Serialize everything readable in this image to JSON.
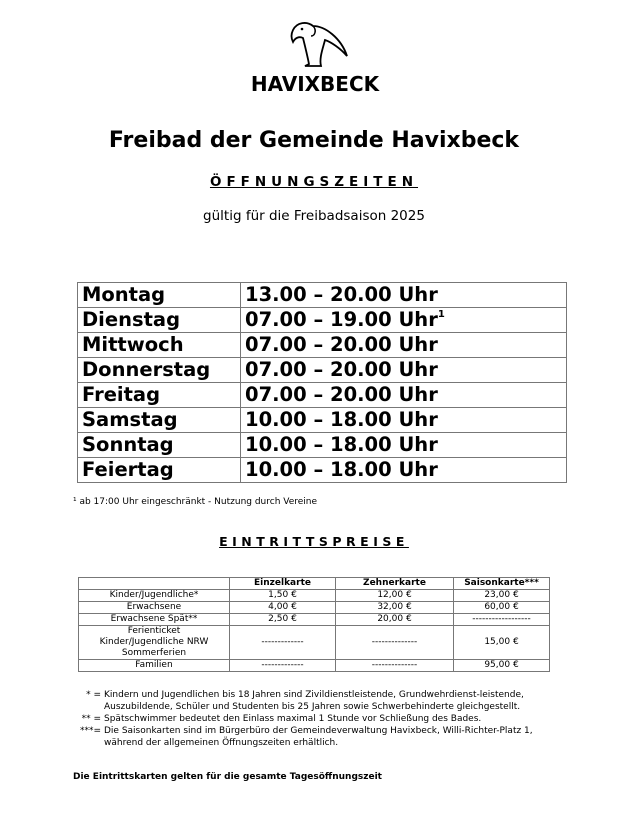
{
  "logo": {
    "text": "HAVIXBECK"
  },
  "title": "Freibad der Gemeinde Havixbeck",
  "subtitle": "ÖFFNUNGSZEITEN",
  "season": "gültig für die Freibadsaison 2025",
  "hours": [
    {
      "day": "Montag",
      "time": "13.00 – 20.00 Uhr",
      "mark": ""
    },
    {
      "day": "Dienstag",
      "time": "07.00 – 19.00 Uhr",
      "mark": "1"
    },
    {
      "day": "Mittwoch",
      "time": "07.00 – 20.00 Uhr",
      "mark": ""
    },
    {
      "day": "Donnerstag",
      "time": "07.00 – 20.00 Uhr",
      "mark": ""
    },
    {
      "day": "Freitag",
      "time": "07.00 – 20.00 Uhr",
      "mark": ""
    },
    {
      "day": "Samstag",
      "time": "10.00 – 18.00 Uhr",
      "mark": ""
    },
    {
      "day": "Sonntag",
      "time": "10.00 – 18.00 Uhr",
      "mark": ""
    },
    {
      "day": "Feiertag",
      "time": "10.00 – 18.00 Uhr",
      "mark": ""
    }
  ],
  "hours_note": "¹ ab 17:00 Uhr eingeschränkt - Nutzung durch Vereine",
  "prices_title": "EINTRITTSPREISE",
  "prices": {
    "headers": [
      "",
      "Einzelkarte",
      "Zehnerkarte",
      "Saisonkarte***"
    ],
    "rows": [
      [
        "Kinder/Jugendliche*",
        "1,50 €",
        "12,00 €",
        "23,00 €"
      ],
      [
        "Erwachsene",
        "4,00 €",
        "32,00 €",
        "60,00 €"
      ],
      [
        "Erwachsene Spät**",
        "2,50 €",
        "20,00 €",
        "------------------"
      ],
      [
        "Ferienticket\nKinder/Jugendliche NRW\nSommerferien",
        "-------------",
        "--------------",
        "15,00 €"
      ],
      [
        "Familien",
        "-------------",
        "--------------",
        "95,00 €"
      ]
    ]
  },
  "notes": [
    {
      "mark": "* =",
      "text": "Kindern und Jugendlichen bis 18 Jahren sind Zivildienstleistende, Grundwehrdienst-leistende, Auszubildende, Schüler und Studenten bis 25 Jahren sowie Schwerbehinderte gleichgestellt."
    },
    {
      "mark": "** =",
      "text": "Spätschwimmer bedeutet den Einlass maximal 1 Stunde vor Schließung des Bades."
    },
    {
      "mark": "***=",
      "text": "Die Saisonkarten sind im Bürgerbüro der Gemeindeverwaltung Havixbeck, Willi-Richter-Platz 1, während der allgemeinen Öffnungszeiten erhältlich."
    }
  ],
  "final_note": "Die Eintrittskarten gelten für die gesamte Tagesöffnungszeit"
}
